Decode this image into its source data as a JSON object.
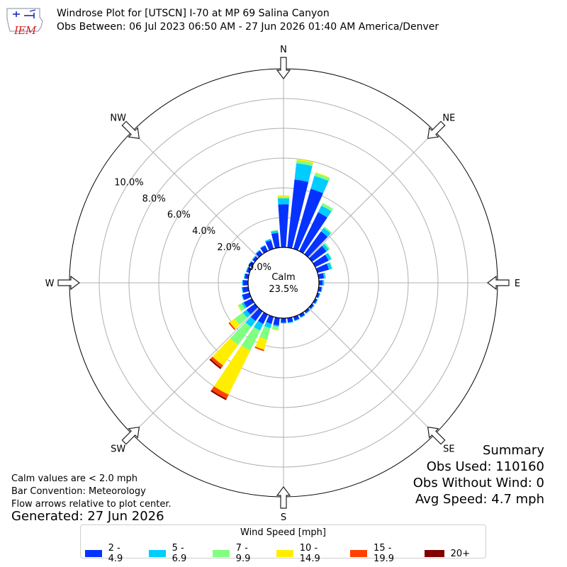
{
  "header": {
    "logo_text": "IEM",
    "title_line1": "Windrose Plot for [UTSCN] I-70 at MP 69 Salina Canyon",
    "title_line2": "Obs Between: 06 Jul 2023 06:50 AM - 27 Jun 2026 01:40 AM America/Denver"
  },
  "notes": {
    "line1": "Calm values are < 2.0 mph",
    "line2": "Bar Convention: Meteorology",
    "line3": "Flow arrows relative to plot center.",
    "generated": "Generated: 27 Jun 2026"
  },
  "summary": {
    "title": "Summary",
    "obs_used": "Obs Used: 110160",
    "obs_without_wind": "Obs Without Wind: 0",
    "avg_speed": "Avg Speed: 4.7 mph"
  },
  "legend": {
    "title": "Wind Speed [mph]"
  },
  "chart_data": {
    "type": "windrose",
    "title": "Windrose Plot for [UTSCN] I-70 at MP 69 Salina Canyon",
    "radial_unit": "%",
    "rlim": [
      0,
      12
    ],
    "radial_ticks": [
      0,
      2,
      4,
      6,
      8,
      10
    ],
    "radial_tick_labels": [
      "0.0%",
      "2.0%",
      "4.0%",
      "6.0%",
      "8.0%",
      "10.0%"
    ],
    "compass_labels": [
      "N",
      "NE",
      "E",
      "SE",
      "S",
      "SW",
      "W",
      "NW"
    ],
    "calm_label": "Calm",
    "calm_value": "23.5%",
    "grid": true,
    "legend_placement": "bottom",
    "speed_bins": [
      {
        "name": "2 - 4.9",
        "color": "#0532ff"
      },
      {
        "name": "5 - 6.9",
        "color": "#00ccff"
      },
      {
        "name": "7 - 9.9",
        "color": "#80ff80"
      },
      {
        "name": "10 - 14.9",
        "color": "#ffee00"
      },
      {
        "name": "15 - 19.9",
        "color": "#ff4000"
      },
      {
        "name": "20+",
        "color": "#800000"
      }
    ],
    "directions": [
      0,
      10,
      20,
      30,
      40,
      50,
      60,
      70,
      80,
      90,
      100,
      110,
      120,
      130,
      140,
      150,
      160,
      170,
      180,
      190,
      200,
      210,
      220,
      230,
      240,
      250,
      260,
      270,
      280,
      290,
      300,
      310,
      320,
      330,
      340,
      350
    ],
    "values": [
      [
        2.9,
        0.4,
        0.1,
        0.1,
        0.0,
        0.0
      ],
      [
        4.6,
        1.1,
        0.2,
        0.1,
        0.0,
        0.0
      ],
      [
        4.2,
        0.9,
        0.2,
        0.05,
        0.0,
        0.0
      ],
      [
        2.9,
        0.5,
        0.2,
        0.0,
        0.0,
        0.0
      ],
      [
        1.9,
        0.3,
        0.1,
        0.0,
        0.0,
        0.0
      ],
      [
        1.2,
        0.2,
        0.1,
        0.0,
        0.0,
        0.0
      ],
      [
        1.0,
        0.2,
        0.05,
        0.0,
        0.0,
        0.0
      ],
      [
        0.8,
        0.2,
        0.05,
        0.0,
        0.0,
        0.0
      ],
      [
        0.35,
        0.1,
        0.05,
        0.0,
        0.0,
        0.0
      ],
      [
        0.25,
        0.1,
        0.0,
        0.0,
        0.0,
        0.0
      ],
      [
        0.2,
        0.05,
        0.0,
        0.0,
        0.0,
        0.0
      ],
      [
        0.15,
        0.05,
        0.0,
        0.0,
        0.0,
        0.0
      ],
      [
        0.15,
        0.05,
        0.0,
        0.0,
        0.0,
        0.0
      ],
      [
        0.15,
        0.05,
        0.0,
        0.0,
        0.0,
        0.0
      ],
      [
        0.15,
        0.05,
        0.0,
        0.0,
        0.0,
        0.0
      ],
      [
        0.2,
        0.05,
        0.0,
        0.0,
        0.0,
        0.0
      ],
      [
        0.25,
        0.05,
        0.0,
        0.0,
        0.0,
        0.0
      ],
      [
        0.3,
        0.05,
        0.0,
        0.0,
        0.0,
        0.0
      ],
      [
        0.3,
        0.05,
        0.0,
        0.0,
        0.0,
        0.0
      ],
      [
        0.5,
        0.1,
        0.2,
        0.05,
        0.0,
        0.0
      ],
      [
        0.5,
        0.3,
        0.8,
        0.7,
        0.1,
        0.0
      ],
      [
        0.7,
        0.5,
        1.5,
        3.3,
        0.3,
        0.1
      ],
      [
        0.8,
        0.5,
        1.5,
        1.7,
        0.2,
        0.1
      ],
      [
        0.7,
        0.3,
        0.7,
        0.4,
        0.1,
        0.0
      ],
      [
        0.6,
        0.15,
        0.25,
        0.05,
        0.0,
        0.0
      ],
      [
        0.5,
        0.05,
        0.0,
        0.0,
        0.0,
        0.0
      ],
      [
        0.4,
        0.05,
        0.0,
        0.0,
        0.0,
        0.0
      ],
      [
        0.35,
        0.05,
        0.0,
        0.0,
        0.0,
        0.0
      ],
      [
        0.25,
        0.05,
        0.0,
        0.0,
        0.0,
        0.0
      ],
      [
        0.2,
        0.05,
        0.0,
        0.0,
        0.0,
        0.0
      ],
      [
        0.2,
        0.05,
        0.0,
        0.0,
        0.0,
        0.0
      ],
      [
        0.2,
        0.05,
        0.0,
        0.0,
        0.0,
        0.0
      ],
      [
        0.3,
        0.05,
        0.0,
        0.0,
        0.0,
        0.0
      ],
      [
        0.4,
        0.05,
        0.0,
        0.0,
        0.0,
        0.0
      ],
      [
        0.6,
        0.1,
        0.0,
        0.0,
        0.0,
        0.0
      ],
      [
        1.0,
        0.15,
        0.05,
        0.0,
        0.0,
        0.0
      ]
    ]
  }
}
